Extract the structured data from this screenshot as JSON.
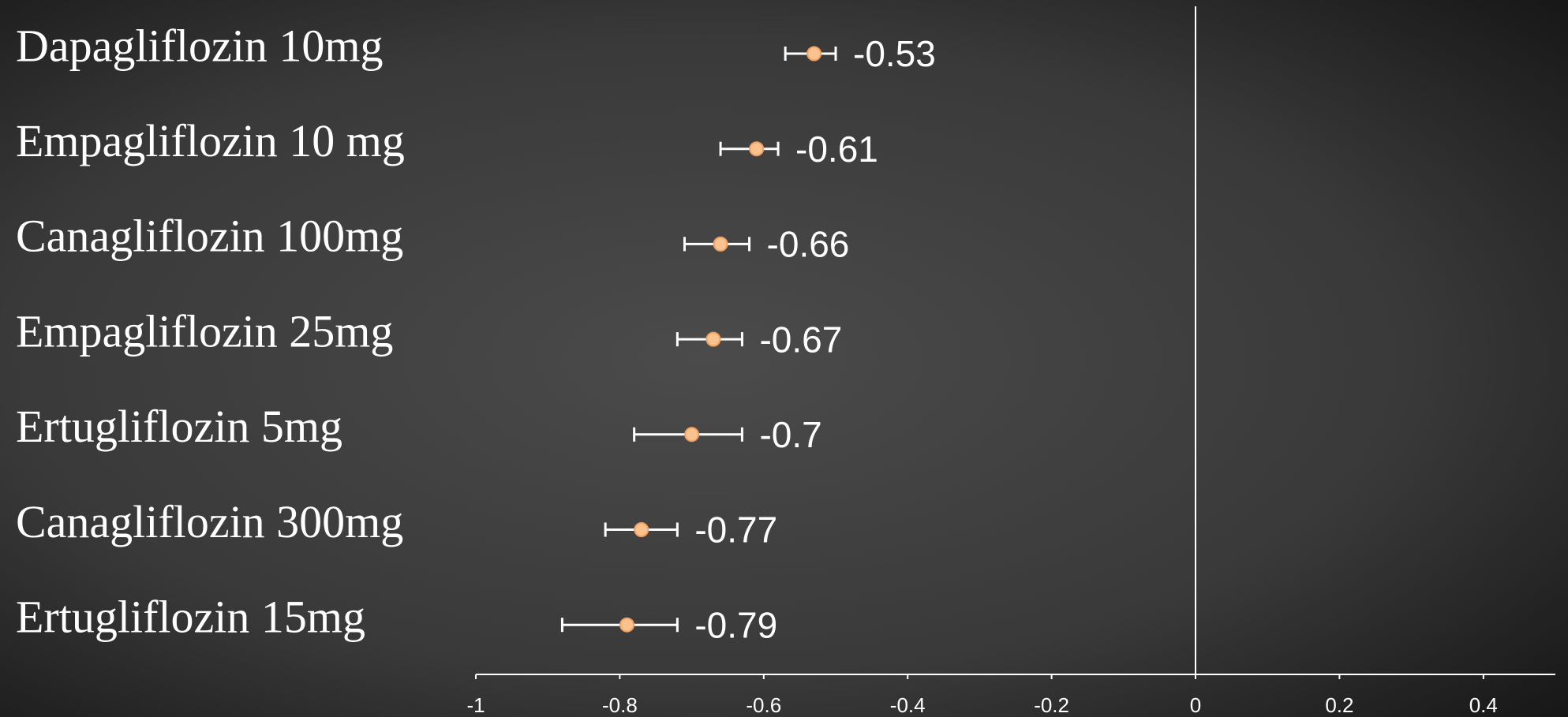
{
  "chart_data": {
    "type": "forest",
    "categories": [
      "Dapagliflozin 10mg",
      "Empagliflozin 10 mg",
      "Canagliflozin 100mg",
      "Empagliflozin 25mg",
      "Ertugliflozin 5mg",
      "Canagliflozin 300mg",
      "Ertugliflozin 15mg"
    ],
    "values": [
      -0.53,
      -0.61,
      -0.66,
      -0.67,
      -0.7,
      -0.77,
      -0.79
    ],
    "lower": [
      -0.57,
      -0.66,
      -0.71,
      -0.72,
      -0.78,
      -0.82,
      -0.88
    ],
    "upper": [
      -0.5,
      -0.58,
      -0.62,
      -0.63,
      -0.63,
      -0.72,
      -0.72
    ],
    "color": "#f9c28f",
    "xlim": [
      -1,
      0.5
    ],
    "xticks": [
      -1,
      -0.8,
      -0.6,
      -0.4,
      -0.2,
      0,
      0.2,
      0.4
    ]
  }
}
